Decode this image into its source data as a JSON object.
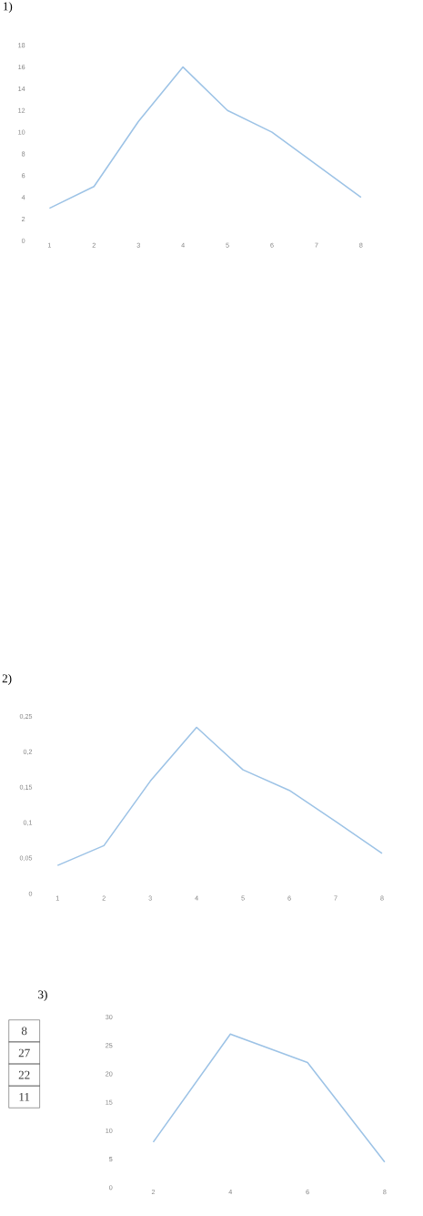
{
  "chart_data": [
    {
      "type": "line",
      "title": "1)",
      "categories": [
        "1",
        "2",
        "3",
        "4",
        "5",
        "6",
        "7",
        "8"
      ],
      "values": [
        3,
        5,
        11,
        16,
        12,
        10,
        7,
        4
      ],
      "color": "#9dc3e6",
      "ylim": [
        0,
        18
      ],
      "yticks": [
        0,
        2,
        4,
        6,
        8,
        10,
        12,
        14,
        16,
        18
      ]
    },
    {
      "type": "line",
      "title": "2)",
      "categories": [
        "1",
        "2",
        "3",
        "4",
        "5",
        "6",
        "7",
        "8"
      ],
      "values": [
        0.04,
        0.068,
        0.159,
        0.235,
        0.175,
        0.146,
        0.102,
        0.057
      ],
      "color": "#9dc3e6",
      "ylim": [
        0,
        0.25
      ],
      "yticks": [
        0,
        {
          "value": 0.05,
          "label": "0,05"
        },
        {
          "value": 0.1,
          "label": "0,1"
        },
        {
          "value": 0.15,
          "label": "0,15"
        },
        {
          "value": 0.2,
          "label": "0,2"
        },
        {
          "value": 0.25,
          "label": "0,25"
        }
      ]
    },
    {
      "type": "line",
      "title": "3)",
      "categories": [
        "2",
        "4",
        "6",
        "8"
      ],
      "values": [
        8,
        27,
        22,
        4.5
      ],
      "color": "#9dc3e6",
      "ylim": [
        0,
        30
      ],
      "yticks": [
        0,
        5,
        10,
        15,
        20,
        25,
        30
      ],
      "annotations": [
        "8",
        "27",
        "22",
        "11"
      ]
    }
  ]
}
